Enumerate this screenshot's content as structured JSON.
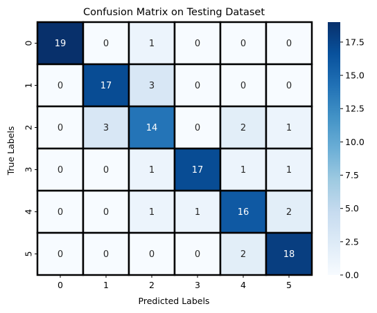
{
  "chart_data": {
    "type": "heatmap",
    "title": "Confusion Matrix on Testing Dataset",
    "xlabel": "Predicted Labels",
    "ylabel": "True Labels",
    "x_categories": [
      "0",
      "1",
      "2",
      "3",
      "4",
      "5"
    ],
    "y_categories": [
      "0",
      "1",
      "2",
      "3",
      "4",
      "5"
    ],
    "values": [
      [
        19,
        0,
        1,
        0,
        0,
        0
      ],
      [
        0,
        17,
        3,
        0,
        0,
        0
      ],
      [
        0,
        3,
        14,
        0,
        2,
        1
      ],
      [
        0,
        0,
        1,
        17,
        1,
        1
      ],
      [
        0,
        0,
        1,
        1,
        16,
        2
      ],
      [
        0,
        0,
        0,
        0,
        2,
        18
      ]
    ],
    "colormap": "Blues",
    "colormap_stops": [
      "#f7fbff",
      "#deebf7",
      "#c6dbef",
      "#9ecae1",
      "#6baed6",
      "#4292c6",
      "#2171b5",
      "#08519c",
      "#08306b"
    ],
    "vmin": 0,
    "vmax": 19,
    "colorbar_ticks": [
      "0.0",
      "2.5",
      "5.0",
      "7.5",
      "10.0",
      "12.5",
      "15.0",
      "17.5"
    ],
    "cell_border_color": "#000000",
    "annotation_dark_text": "#262626",
    "annotation_light_text": "#ffffff"
  }
}
